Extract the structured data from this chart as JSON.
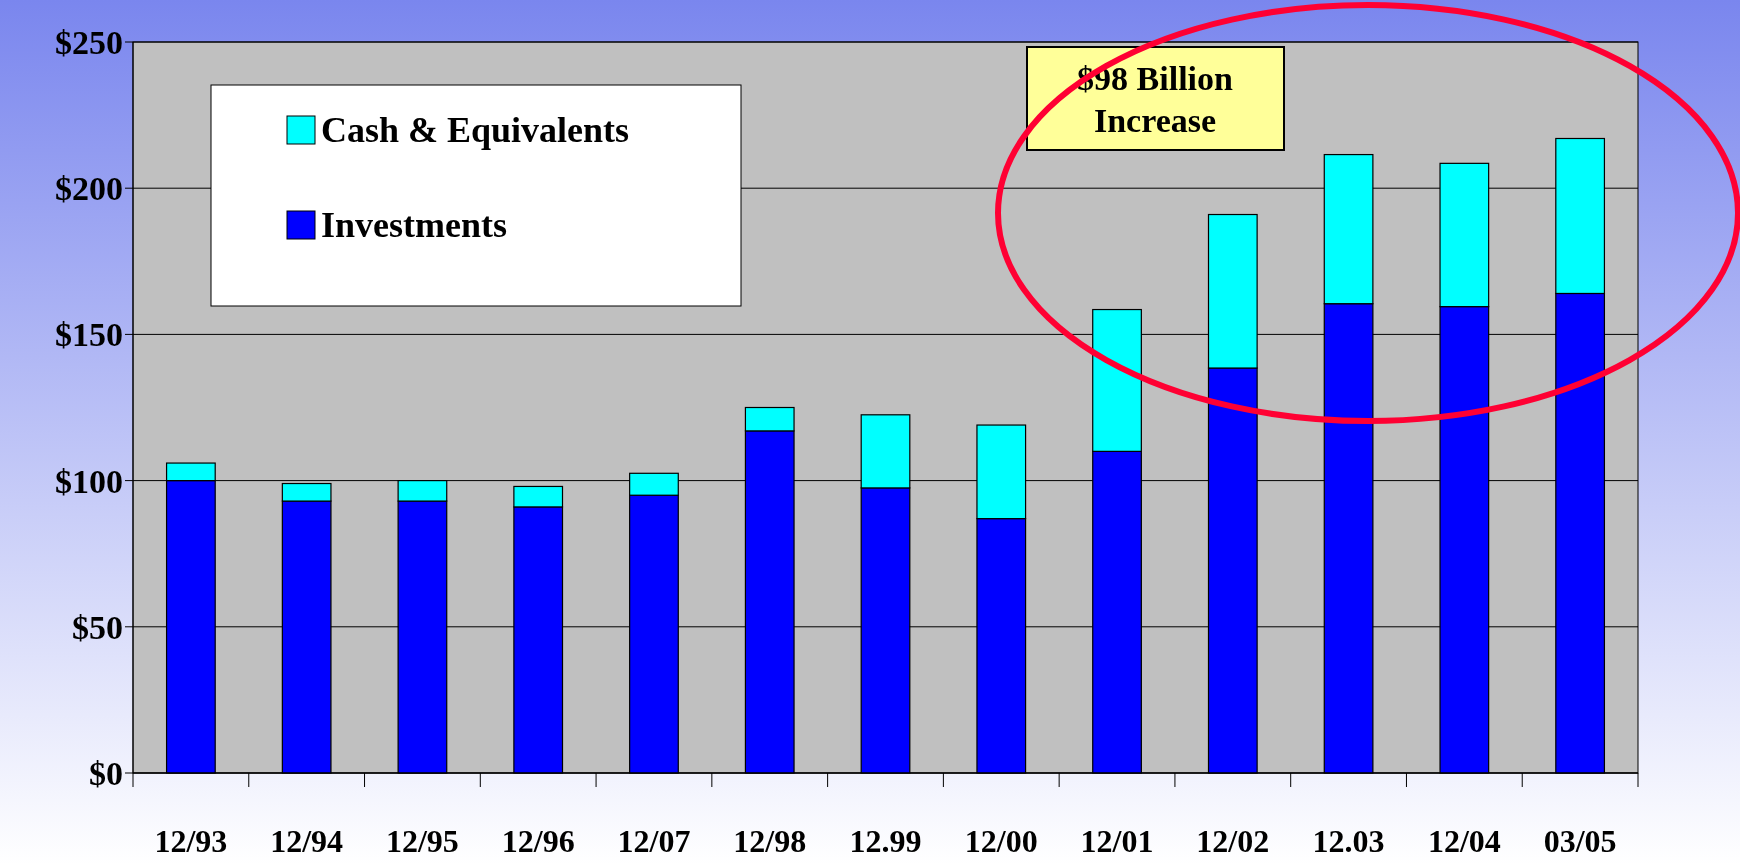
{
  "chart_data": {
    "type": "bar",
    "stacked": true,
    "categories": [
      "12/93",
      "12/94",
      "12/95",
      "12/96",
      "12/07",
      "12/98",
      "12.99",
      "12/00",
      "12/01",
      "12/02",
      "12.03",
      "12/04",
      "03/05"
    ],
    "series": [
      {
        "name": "Investments",
        "color": "#0000ff",
        "values": [
          100,
          93,
          93,
          91,
          95,
          117,
          97.5,
          87,
          110,
          138.5,
          160.5,
          159.5,
          164
        ]
      },
      {
        "name": "Cash & Equivalents",
        "color": "#00ffff",
        "values": [
          6,
          6,
          7,
          7,
          7.5,
          8,
          25,
          32,
          48.5,
          52.5,
          51,
          49,
          53
        ]
      }
    ],
    "ylim": [
      0,
      250
    ],
    "yticks": [
      {
        "value": 0,
        "label": "$0"
      },
      {
        "value": 50,
        "label": "$50"
      },
      {
        "value": 100,
        "label": "$100"
      },
      {
        "value": 150,
        "label": "$150"
      },
      {
        "value": 200,
        "label": "$200"
      },
      {
        "value": 250,
        "label": "$250"
      }
    ],
    "grid": "y",
    "legend": "top left",
    "annotations": [
      "$98 Billion Increase"
    ]
  }
}
